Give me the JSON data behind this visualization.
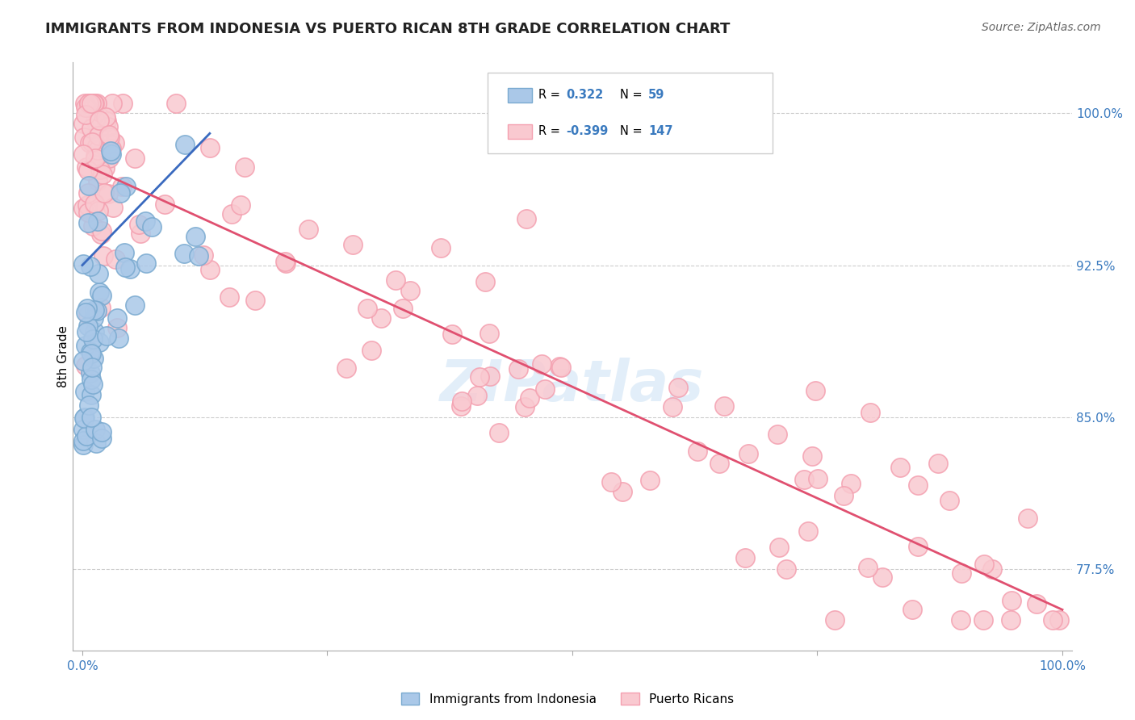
{
  "title": "IMMIGRANTS FROM INDONESIA VS PUERTO RICAN 8TH GRADE CORRELATION CHART",
  "source": "Source: ZipAtlas.com",
  "ylabel": "8th Grade",
  "legend_r_blue": "0.322",
  "legend_n_blue": "59",
  "legend_r_pink": "-0.399",
  "legend_n_pink": "147",
  "blue_dot_color": "#aac8e8",
  "blue_edge_color": "#7aaad0",
  "pink_dot_color": "#f9c9d0",
  "pink_edge_color": "#f4a0b0",
  "blue_line_color": "#3a6abf",
  "pink_line_color": "#e05070",
  "grid_color": "#cccccc",
  "tick_label_color": "#3a7abf",
  "watermark_color": "#d0e4f5",
  "title_color": "#222222",
  "source_color": "#666666",
  "xmin": -0.01,
  "xmax": 1.01,
  "ymin": 0.735,
  "ymax": 1.025,
  "ytick_vals": [
    0.775,
    0.85,
    0.925,
    1.0
  ],
  "ytick_labels": [
    "77.5%",
    "85.0%",
    "92.5%",
    "100.0%"
  ],
  "grid_vals": [
    0.775,
    0.85,
    0.925,
    1.0
  ],
  "blue_line_x": [
    0.0,
    0.13
  ],
  "blue_line_y": [
    0.925,
    0.99
  ],
  "pink_line_x": [
    0.0,
    1.0
  ],
  "pink_line_y": [
    0.975,
    0.755
  ]
}
